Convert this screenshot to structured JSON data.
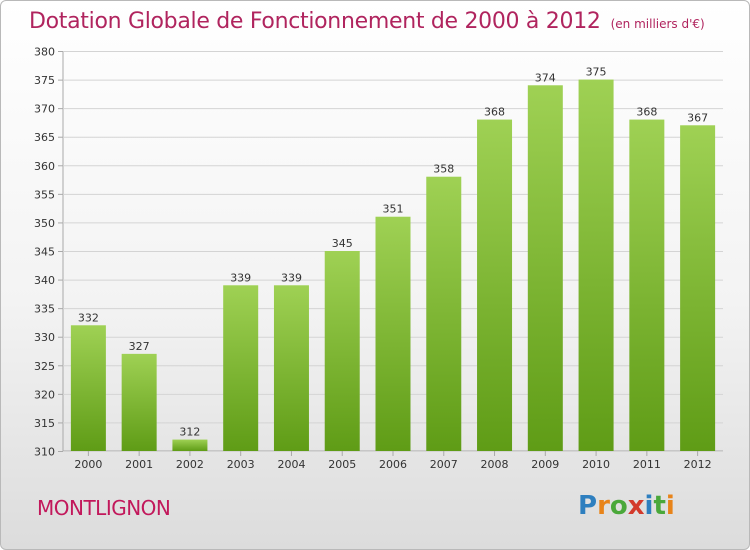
{
  "title": "Dotation Globale de Fonctionnement de 2000 à 2012",
  "subtitle": "(en milliers d'€)",
  "town": "MONTLIGNON",
  "logo": {
    "text": "Proxiti",
    "letters": [
      "P",
      "r",
      "o",
      "x",
      "i",
      "t",
      "i"
    ],
    "colors": [
      "#2e7fbf",
      "#e8841a",
      "#4aa83a",
      "#d33a2c",
      "#2e7fbf",
      "#4aa83a",
      "#e8841a"
    ]
  },
  "colors": {
    "bar_top": "#9fd154",
    "bar_bottom": "#5f9c16",
    "title": "#b0245e"
  },
  "chart_data": {
    "type": "bar",
    "title": "Dotation Globale de Fonctionnement de 2000 à 2012",
    "subtitle": "(en milliers d'€)",
    "categories": [
      "2000",
      "2001",
      "2002",
      "2003",
      "2004",
      "2005",
      "2006",
      "2007",
      "2008",
      "2009",
      "2010",
      "2011",
      "2012"
    ],
    "values": [
      332,
      327,
      312,
      339,
      339,
      345,
      351,
      358,
      368,
      374,
      375,
      368,
      367
    ],
    "ylim": [
      310,
      380
    ],
    "yticks": [
      310,
      315,
      320,
      325,
      330,
      335,
      340,
      345,
      350,
      355,
      360,
      365,
      370,
      375,
      380
    ],
    "grid": true,
    "xlabel": "",
    "ylabel": ""
  }
}
